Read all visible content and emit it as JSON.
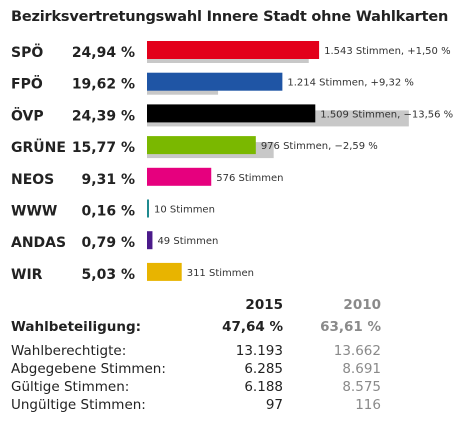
{
  "chart_data": {
    "type": "bar",
    "title": "Bezirksvertretungswahl Innere Stadt ohne Wahlkarten",
    "categories": [
      "SPÖ",
      "FPÖ",
      "ÖVP",
      "GRÜNE",
      "NEOS",
      "WWW",
      "ANDAS",
      "WIR"
    ],
    "series": [
      {
        "name": "2015",
        "values": [
          24.94,
          19.62,
          24.39,
          15.77,
          9.31,
          0.16,
          0.79,
          5.03
        ]
      },
      {
        "name": "2010",
        "values": [
          23.44,
          10.3,
          37.95,
          18.36,
          null,
          null,
          null,
          null
        ]
      }
    ],
    "percent_labels": [
      "24,94 %",
      "19,62 %",
      "24,39 %",
      "15,77 %",
      "9,31 %",
      "0,16 %",
      "0,79 %",
      "5,03 %"
    ],
    "bar_labels": [
      "1.543 Stimmen, +1,50 %",
      "1.214 Stimmen, +9,32 %",
      "1.509 Stimmen, −13,56 %",
      "976 Stimmen, −2,59 %",
      "576 Stimmen",
      "10 Stimmen",
      "49 Stimmen",
      "311 Stimmen"
    ],
    "colors": [
      "#e3001b",
      "#1f55a5",
      "#000000",
      "#7ab800",
      "#e6007e",
      "#1f8a8f",
      "#4b1a8a",
      "#e8b400"
    ],
    "previous_color": "#c8c8c8",
    "xlim": [
      0,
      40
    ]
  },
  "stats": {
    "header_2015": "2015",
    "header_2010": "2010",
    "rows": [
      {
        "label": "Wahlbeteiligung:",
        "v2015": "47,64 %",
        "v2010": "63,61 %"
      },
      {
        "label": "Wahlberechtigte:",
        "v2015": "13.193",
        "v2010": "13.662"
      },
      {
        "label": "Abgegebene Stimmen:",
        "v2015": "6.285",
        "v2010": "8.691"
      },
      {
        "label": "Gültige Stimmen:",
        "v2015": "6.188",
        "v2010": "8.575"
      },
      {
        "label": "Ungültige Stimmen:",
        "v2015": "97",
        "v2010": "116"
      }
    ]
  }
}
